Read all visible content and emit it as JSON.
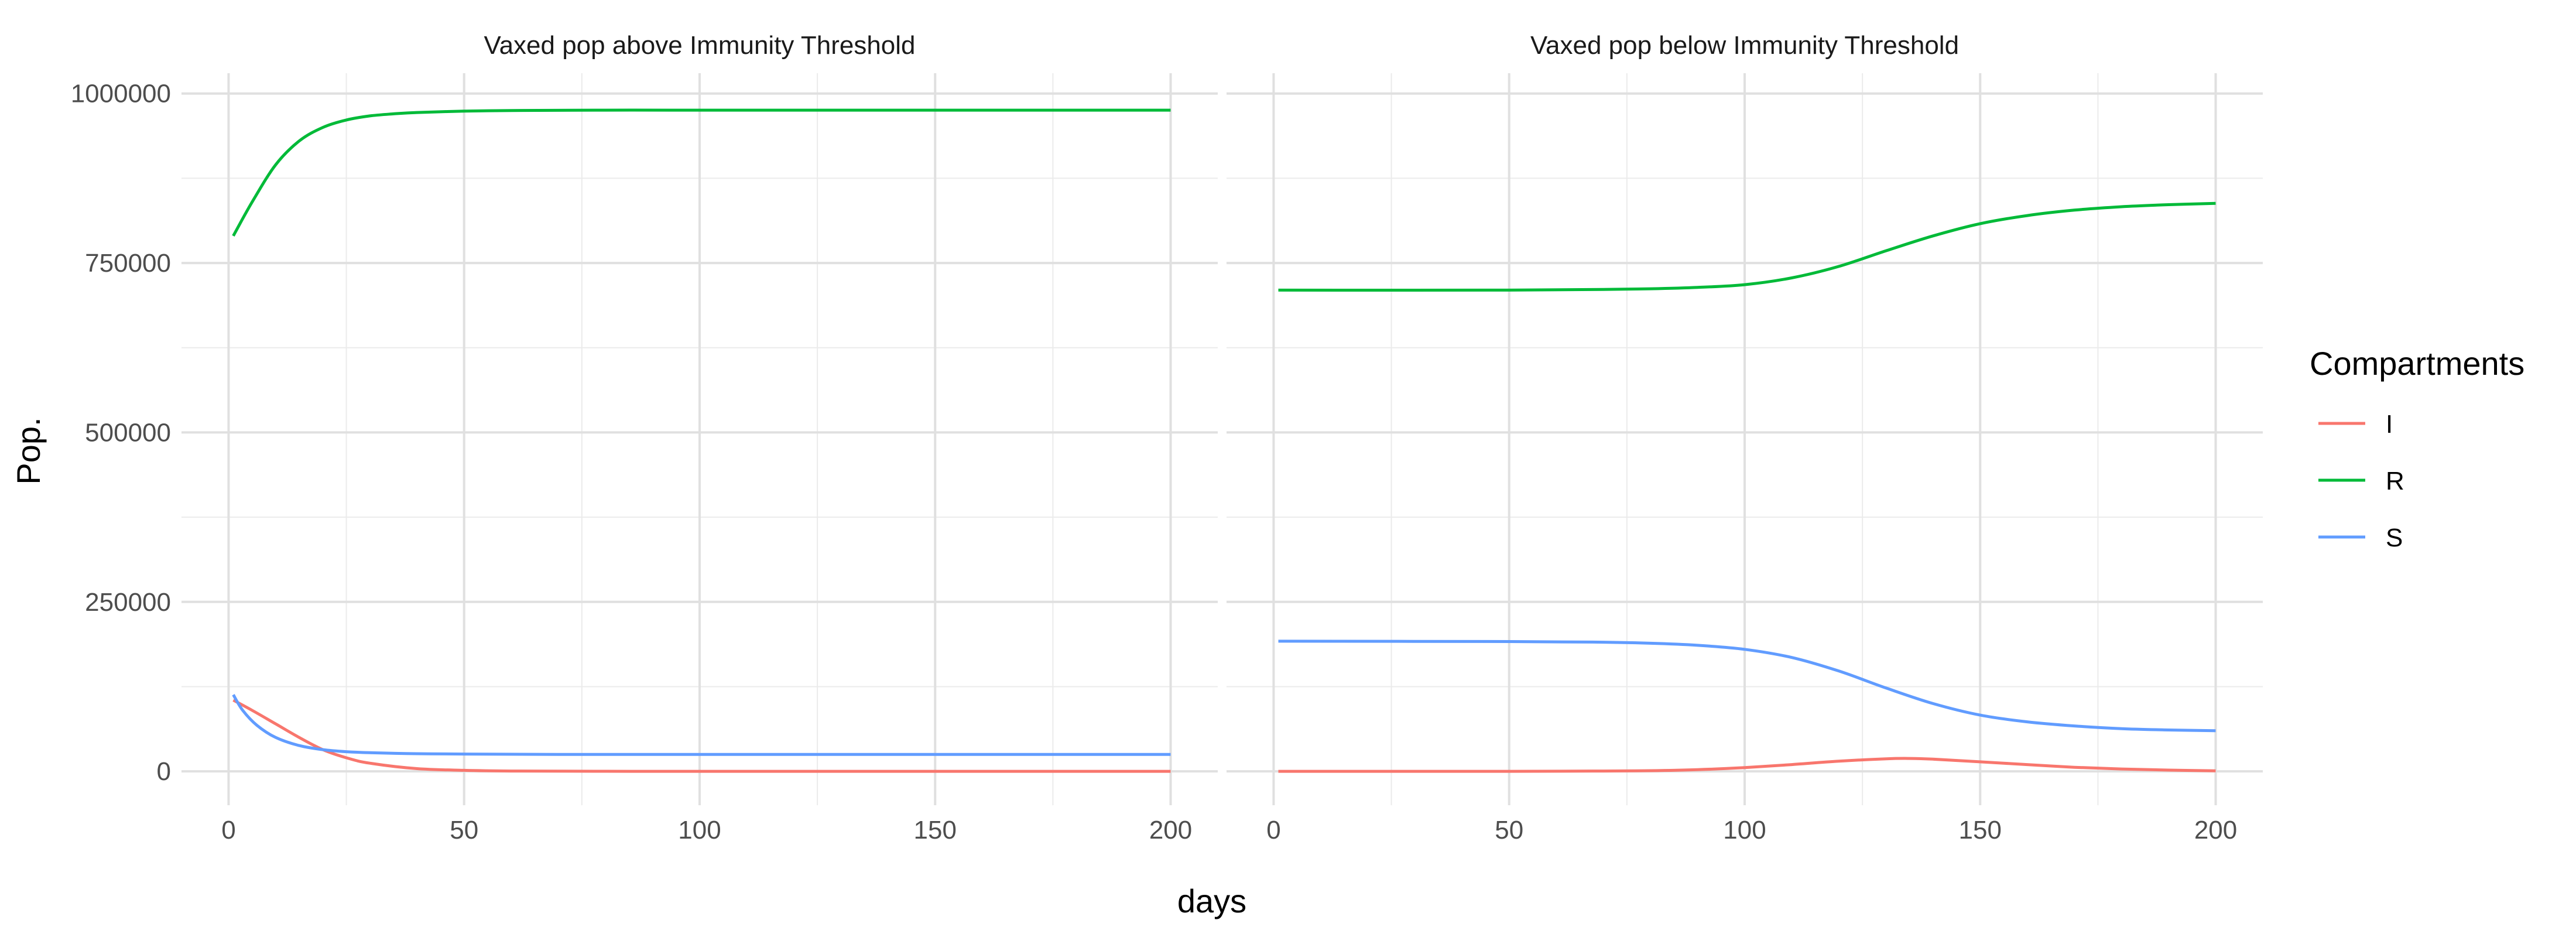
{
  "chart_data": {
    "type": "line",
    "xlabel": "days",
    "ylabel": "Pop.",
    "xlim": [
      -10,
      210
    ],
    "ylim": [
      -50000,
      1030000
    ],
    "x_ticks": [
      0,
      50,
      100,
      150,
      200
    ],
    "x_tick_labels": [
      "0",
      "50",
      "100",
      "150",
      "200"
    ],
    "y_ticks": [
      0,
      250000,
      500000,
      750000,
      1000000
    ],
    "y_tick_labels": [
      "0",
      "250000",
      "500000",
      "750000",
      "1000000"
    ],
    "grid": true,
    "legend": {
      "title": "Compartments",
      "placement": "right",
      "entries": [
        {
          "name": "I",
          "color": "#F8766D"
        },
        {
          "name": "R",
          "color": "#00BA38"
        },
        {
          "name": "S",
          "color": "#619CFF"
        }
      ]
    },
    "panels": [
      {
        "title": "Vaxed pop above Immunity Threshold",
        "series": [
          {
            "name": "I",
            "color": "#F8766D",
            "x": [
              1,
              5,
              10,
              15,
              20,
              25,
              30,
              40,
              50,
              60,
              80,
              100,
              150,
              200
            ],
            "y": [
              105000,
              90000,
              70000,
              50000,
              32000,
              20000,
              12000,
              4000,
              1500,
              500,
              100,
              0,
              0,
              0
            ]
          },
          {
            "name": "R",
            "color": "#00BA38",
            "x": [
              1,
              5,
              10,
              15,
              20,
              25,
              30,
              35,
              40,
              50,
              60,
              80,
              100,
              150,
              200
            ],
            "y": [
              790000,
              840000,
              895000,
              930000,
              950000,
              961000,
              967000,
              970000,
              972000,
              974000,
              975000,
              975500,
              975500,
              975500,
              975500
            ]
          },
          {
            "name": "S",
            "color": "#619CFF",
            "x": [
              1,
              3,
              6,
              10,
              15,
              20,
              25,
              30,
              40,
              50,
              70,
              100,
              150,
              200
            ],
            "y": [
              113000,
              90000,
              68000,
              50000,
              38000,
              32000,
              29000,
              27500,
              26000,
              25500,
              25000,
              25000,
              25000,
              25000
            ]
          }
        ]
      },
      {
        "title": "Vaxed pop below Immunity Threshold",
        "series": [
          {
            "name": "I",
            "color": "#F8766D",
            "x": [
              1,
              50,
              70,
              80,
              90,
              100,
              110,
              120,
              130,
              135,
              140,
              150,
              160,
              170,
              180,
              190,
              200
            ],
            "y": [
              0,
              0,
              500,
              1000,
              2500,
              5500,
              10000,
              15000,
              18500,
              19000,
              18000,
              14000,
              10000,
              6000,
              3500,
              1800,
              800
            ]
          },
          {
            "name": "R",
            "color": "#00BA38",
            "x": [
              1,
              50,
              70,
              80,
              90,
              100,
              110,
              120,
              130,
              140,
              150,
              160,
              170,
              180,
              190,
              200
            ],
            "y": [
              710000,
              710000,
              711000,
              712000,
              714000,
              718000,
              728000,
              745000,
              768000,
              790000,
              808000,
              820000,
              828000,
              833000,
              836000,
              838000
            ]
          },
          {
            "name": "S",
            "color": "#619CFF",
            "x": [
              1,
              50,
              70,
              80,
              90,
              100,
              110,
              120,
              130,
              140,
              150,
              160,
              170,
              180,
              190,
              200
            ],
            "y": [
              192000,
              191500,
              190500,
              189000,
              186000,
              180000,
              168000,
              148000,
              123000,
              100000,
              83000,
              73000,
              67000,
              63000,
              61000,
              60000
            ]
          }
        ]
      }
    ]
  }
}
